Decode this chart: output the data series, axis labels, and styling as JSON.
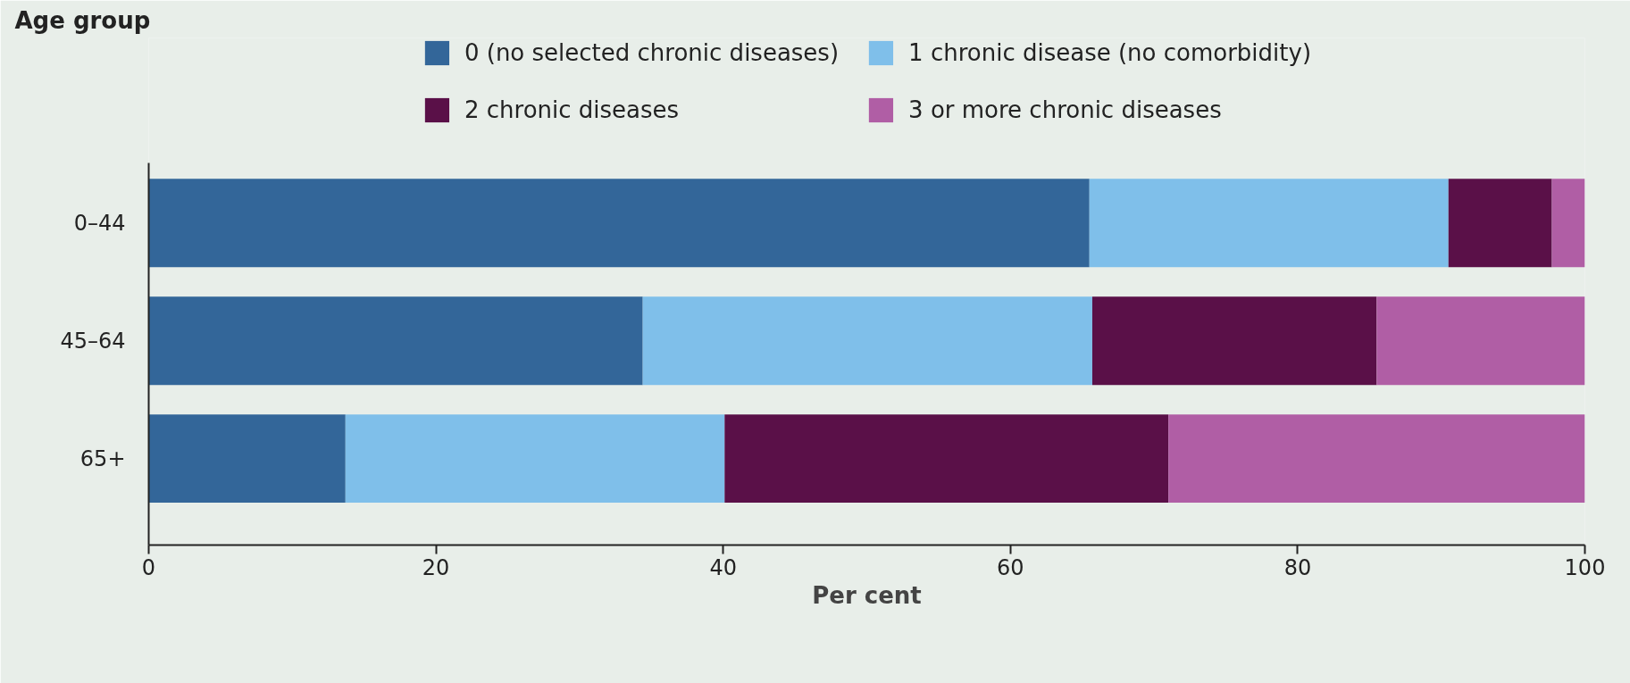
{
  "chart_data": {
    "type": "bar",
    "orientation": "horizontal",
    "stacked": true,
    "annotations": [
      "Age group"
    ],
    "xlabel": "Per cent",
    "categories": [
      "0–44",
      "45–64",
      "65+"
    ],
    "series": [
      {
        "name": "0 (no selected chronic diseases)",
        "color": "#336699",
        "values": [
          65.5,
          34.4,
          13.7
        ]
      },
      {
        "name": "1 chronic disease (no comorbidity)",
        "color": "#7fbfea",
        "values": [
          25,
          31.3,
          26.4
        ]
      },
      {
        "name": "2 chronic diseases",
        "color": "#5a1048",
        "values": [
          7.2,
          19.8,
          30.9
        ]
      },
      {
        "name": "3 or more chronic diseases",
        "color": "#b05ea5",
        "values": [
          2.3,
          14.5,
          29.0
        ]
      }
    ],
    "xlim": [
      0,
      100
    ],
    "xticks": [
      0,
      20,
      40,
      60,
      80,
      100
    ],
    "grid": false,
    "legend": "top"
  }
}
